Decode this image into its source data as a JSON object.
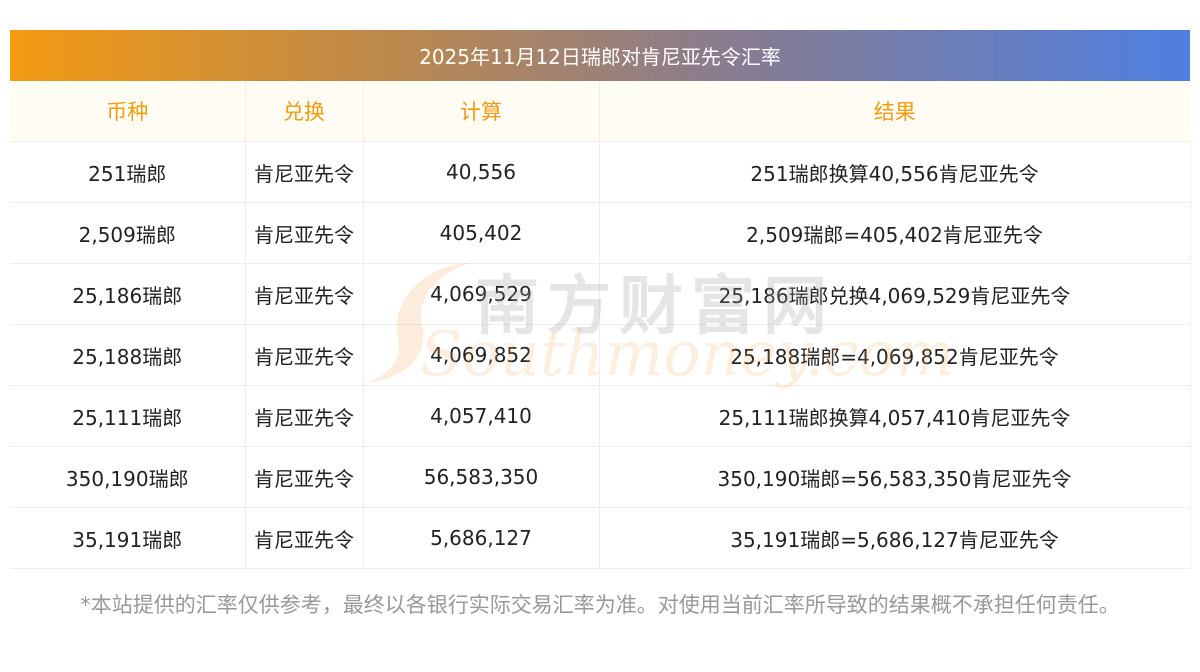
{
  "title": "2025年11月12日瑞郎对肯尼亚先令汇率",
  "headers": [
    "币种",
    "兑换",
    "计算",
    "结果"
  ],
  "rows": [
    {
      "currency": "251瑞郎",
      "target": "肯尼亚先令",
      "calc": "40,556",
      "result": "251瑞郎换算40,556肯尼亚先令"
    },
    {
      "currency": "2,509瑞郎",
      "target": "肯尼亚先令",
      "calc": "405,402",
      "result": "2,509瑞郎=405,402肯尼亚先令"
    },
    {
      "currency": "25,186瑞郎",
      "target": "肯尼亚先令",
      "calc": "4,069,529",
      "result": "25,186瑞郎兑换4,069,529肯尼亚先令"
    },
    {
      "currency": "25,188瑞郎",
      "target": "肯尼亚先令",
      "calc": "4,069,852",
      "result": "25,188瑞郎=4,069,852肯尼亚先令"
    },
    {
      "currency": "25,111瑞郎",
      "target": "肯尼亚先令",
      "calc": "4,057,410",
      "result": "25,111瑞郎换算4,057,410肯尼亚先令"
    },
    {
      "currency": "350,190瑞郎",
      "target": "肯尼亚先令",
      "calc": "56,583,350",
      "result": "350,190瑞郎=56,583,350肯尼亚先令"
    },
    {
      "currency": "35,191瑞郎",
      "target": "肯尼亚先令",
      "calc": "5,686,127",
      "result": "35,191瑞郎=5,686,127肯尼亚先令"
    }
  ],
  "watermark": {
    "cn": "南方财富网",
    "en": "Southmoney.com"
  },
  "note": "*本站提供的汇率仅供参考，最终以各银行实际交易汇率为准。对使用当前汇率所导致的结果概不承担任何责任。",
  "colors": {
    "header_text": "#f39a12",
    "gradient_start": "#f39a12",
    "gradient_end": "#4f7fe0"
  }
}
